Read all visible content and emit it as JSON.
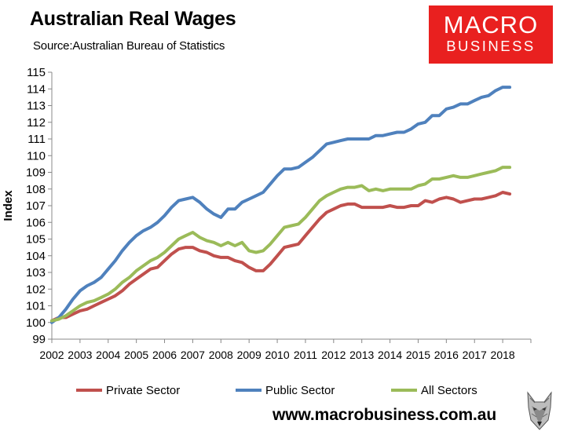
{
  "header": {
    "title": "Australian Real Wages",
    "source_label": "Source:",
    "source_text": "Australian Bureau of Statistics"
  },
  "logo": {
    "line1": "MACRO",
    "line2": "BUSINESS",
    "color": "#e9201f"
  },
  "footer": {
    "website": "www.macrobusiness.com.au",
    "wolf_icon": "wolf-head-icon"
  },
  "chart_data": {
    "type": "line",
    "title": "Australian Real Wages",
    "xlabel": "",
    "ylabel": "Index",
    "ylim": [
      99,
      115
    ],
    "yticks": [
      99,
      100,
      101,
      102,
      103,
      104,
      105,
      106,
      107,
      108,
      109,
      110,
      111,
      112,
      113,
      114,
      115
    ],
    "xticks": [
      "2002",
      "2003",
      "2004",
      "2005",
      "2006",
      "2007",
      "2008",
      "2009",
      "2010",
      "2011",
      "2012",
      "2013",
      "2014",
      "2015",
      "2016",
      "2017",
      "2018"
    ],
    "x_start": "2002 Q1",
    "frequency": "quarterly",
    "grid": false,
    "legend_position": "bottom",
    "series": [
      {
        "name": "Private Sector",
        "color": "#c0504d",
        "values": [
          100.1,
          100.3,
          100.3,
          100.5,
          100.7,
          100.8,
          101.0,
          101.2,
          101.4,
          101.6,
          101.9,
          102.3,
          102.6,
          102.9,
          103.2,
          103.3,
          103.7,
          104.1,
          104.4,
          104.5,
          104.5,
          104.3,
          104.2,
          104.0,
          103.9,
          103.9,
          103.7,
          103.6,
          103.3,
          103.1,
          103.1,
          103.5,
          104.0,
          104.5,
          104.6,
          104.7,
          105.2,
          105.7,
          106.2,
          106.6,
          106.8,
          107.0,
          107.1,
          107.1,
          106.9,
          106.9,
          106.9,
          106.9,
          107.0,
          106.9,
          106.9,
          107.0,
          107.0,
          107.3,
          107.2,
          107.4,
          107.5,
          107.4,
          107.2,
          107.3,
          107.4,
          107.4,
          107.5,
          107.6,
          107.8,
          107.7
        ]
      },
      {
        "name": "Public Sector",
        "color": "#4f81bd",
        "values": [
          100.0,
          100.3,
          100.8,
          101.4,
          101.9,
          102.2,
          102.4,
          102.7,
          103.2,
          103.7,
          104.3,
          104.8,
          105.2,
          105.5,
          105.7,
          106.0,
          106.4,
          106.9,
          107.3,
          107.4,
          107.5,
          107.2,
          106.8,
          106.5,
          106.3,
          106.8,
          106.8,
          107.2,
          107.4,
          107.6,
          107.8,
          108.3,
          108.8,
          109.2,
          109.2,
          109.3,
          109.6,
          109.9,
          110.3,
          110.7,
          110.8,
          110.9,
          111.0,
          111.0,
          111.0,
          111.0,
          111.2,
          111.2,
          111.3,
          111.4,
          111.4,
          111.6,
          111.9,
          112.0,
          112.4,
          112.4,
          112.8,
          112.9,
          113.1,
          113.1,
          113.3,
          113.5,
          113.6,
          113.9,
          114.1,
          114.1
        ]
      },
      {
        "name": "All Sectors",
        "color": "#9bbb59",
        "values": [
          100.1,
          100.2,
          100.4,
          100.7,
          101.0,
          101.2,
          101.3,
          101.5,
          101.7,
          102.0,
          102.4,
          102.7,
          103.1,
          103.4,
          103.7,
          103.9,
          104.2,
          104.6,
          105.0,
          105.2,
          105.4,
          105.1,
          104.9,
          104.8,
          104.6,
          104.8,
          104.6,
          104.8,
          104.3,
          104.2,
          104.3,
          104.7,
          105.2,
          105.7,
          105.8,
          105.9,
          106.3,
          106.8,
          107.3,
          107.6,
          107.8,
          108.0,
          108.1,
          108.1,
          108.2,
          107.9,
          108.0,
          107.9,
          108.0,
          108.0,
          108.0,
          108.0,
          108.2,
          108.3,
          108.6,
          108.6,
          108.7,
          108.8,
          108.7,
          108.7,
          108.8,
          108.9,
          109.0,
          109.1,
          109.3,
          109.3
        ]
      }
    ]
  }
}
